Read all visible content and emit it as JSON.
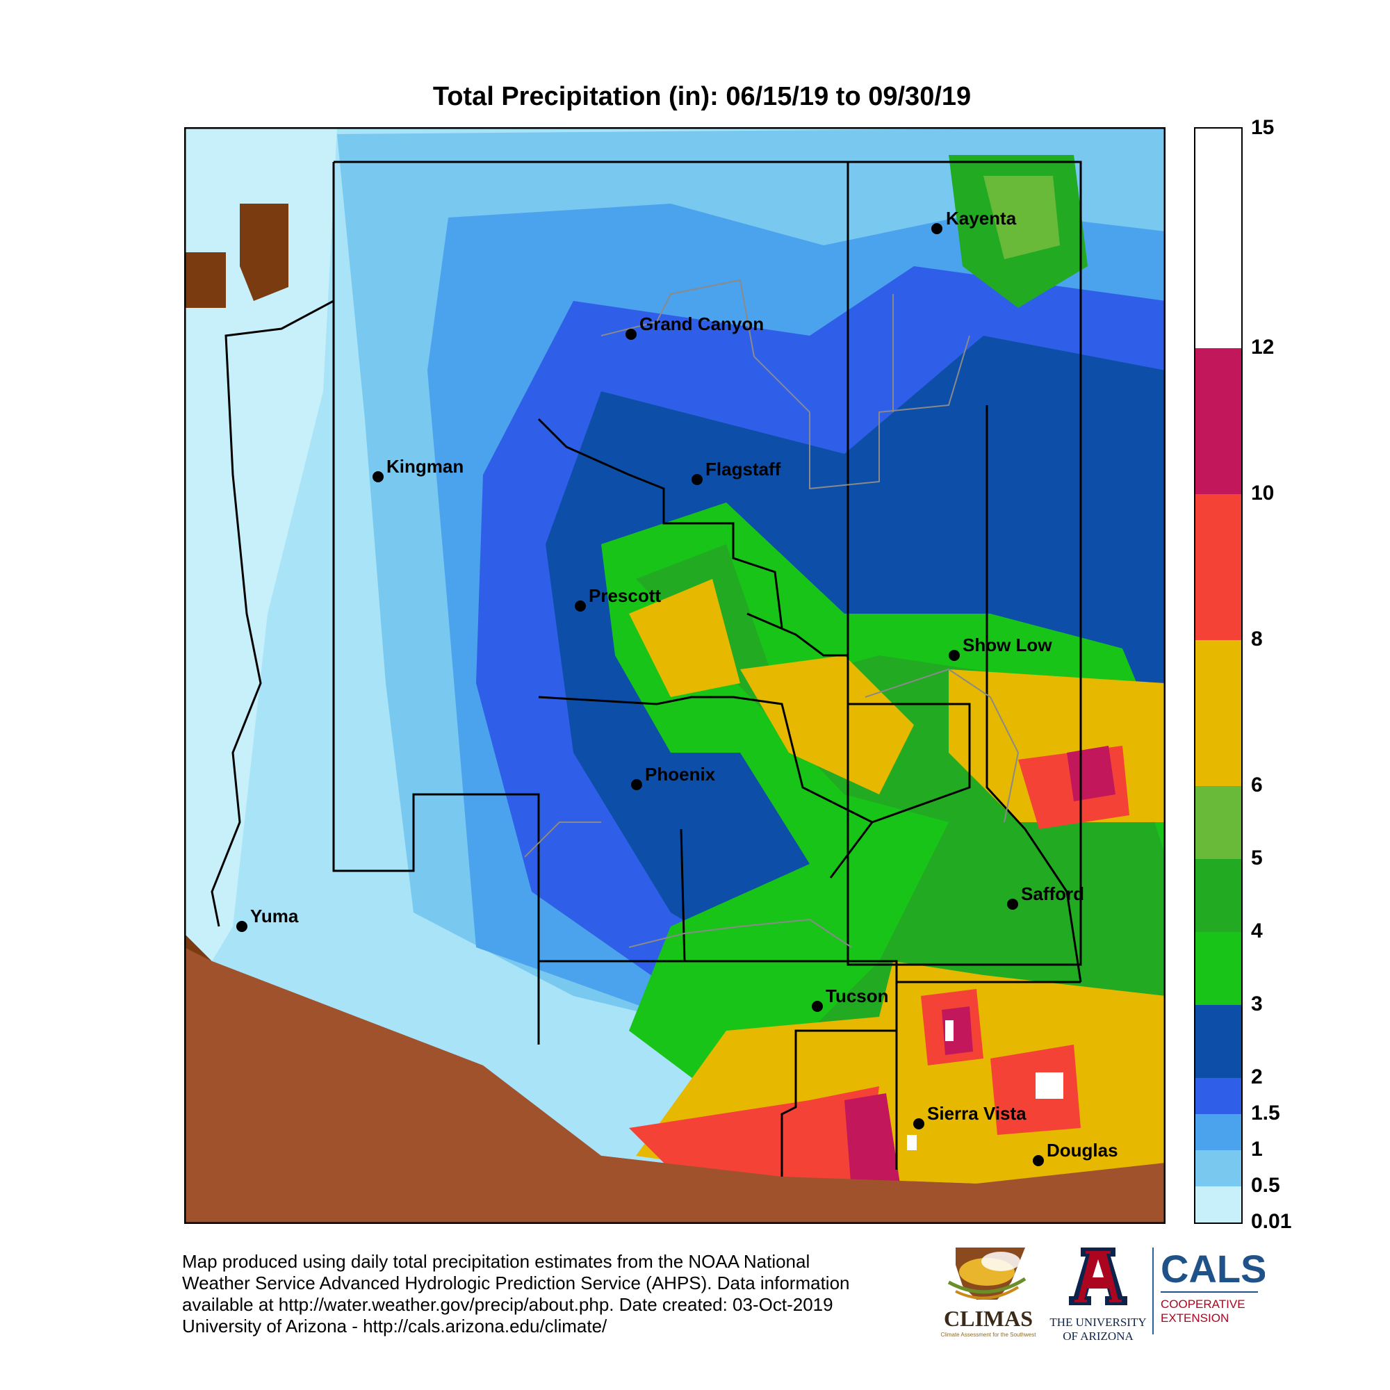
{
  "title": "Total Precipitation (in): 06/15/19 to 09/30/19",
  "legend": {
    "ticks": [
      "15",
      "12",
      "10",
      "8",
      "6",
      "5",
      "4",
      "3",
      "2",
      "1.5",
      "1",
      "0.5",
      "0.01"
    ],
    "colors": [
      "#ffffff",
      "#c2185b",
      "#f44336",
      "#e6b800",
      "#6aba3a",
      "#22aa22",
      "#19c419",
      "#0d4fa8",
      "#2f5fe8",
      "#4aa3ec",
      "#78c8f0",
      "#9fdcf5",
      "#c8f0fb"
    ]
  },
  "cities": [
    {
      "name": "Kayenta"
    },
    {
      "name": "Grand Canyon"
    },
    {
      "name": "Kingman"
    },
    {
      "name": "Flagstaff"
    },
    {
      "name": "Prescott"
    },
    {
      "name": "Show Low"
    },
    {
      "name": "Phoenix"
    },
    {
      "name": "Safford"
    },
    {
      "name": "Yuma"
    },
    {
      "name": "Tucson"
    },
    {
      "name": "Sierra Vista"
    },
    {
      "name": "Douglas"
    }
  ],
  "credit": {
    "line1": "Map produced using daily total precipitation estimates from the NOAA National",
    "line2": "Weather Service Advanced Hydrologic Prediction Service (AHPS). Data information",
    "line3": "available at http://water.weather.gov/precip/about.php. Date created: 03-Oct-2019",
    "line4": "University of Arizona - http://cals.arizona.edu/climate/"
  },
  "logos": {
    "climas_text": "CLIMAS",
    "climas_sub": "Climate Assessment for the Southwest",
    "ua_line1": "THE UNIVERSITY",
    "ua_line2": "OF ARIZONA",
    "cals_text": "CALS",
    "cals_line1": "COOPERATIVE",
    "cals_line2": "EXTENSION"
  }
}
